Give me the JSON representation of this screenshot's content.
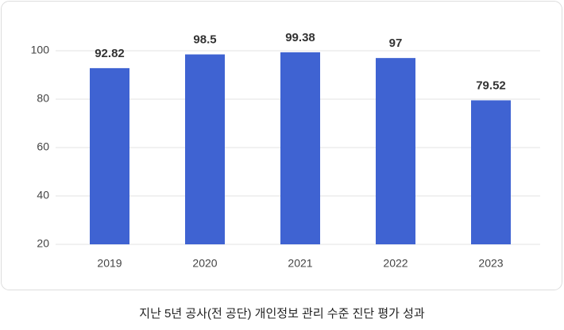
{
  "chart_data": {
    "type": "bar",
    "caption": "지난 5년 공사(전 공단) 개인정보 관리 수준 진단 평가 성과",
    "categories": [
      "2019",
      "2020",
      "2021",
      "2022",
      "2023"
    ],
    "values": [
      92.82,
      98.5,
      99.38,
      97,
      79.52
    ],
    "color": "#3f63d2",
    "ylim": [
      20,
      100
    ],
    "yticks": [
      20,
      40,
      60,
      80,
      100
    ],
    "grid": true
  }
}
